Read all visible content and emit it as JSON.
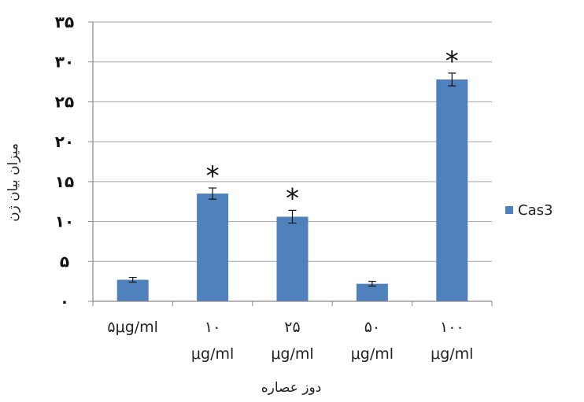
{
  "chart_data": {
    "type": "bar",
    "categories": [
      "۵μg/ml",
      "۱۰ μg/ml",
      "۲۵ μg/ml",
      "۵۰ μg/ml",
      "۱۰۰ μg/ml"
    ],
    "category_lines": [
      [
        "۵μg/ml"
      ],
      [
        "۱۰",
        "μg/ml"
      ],
      [
        "۲۵",
        "μg/ml"
      ],
      [
        "۵۰",
        "μg/ml"
      ],
      [
        "۱۰۰",
        "μg/ml"
      ]
    ],
    "series": [
      {
        "name": "Cas3",
        "values": [
          2.7,
          13.5,
          10.6,
          2.2,
          27.8
        ],
        "errors": [
          0.3,
          0.7,
          0.8,
          0.3,
          0.8
        ],
        "color": "#4F81BD"
      }
    ],
    "significance": [
      "",
      "*",
      "*",
      "",
      "*"
    ],
    "ylim": [
      0,
      35
    ],
    "yticks": [
      0,
      5,
      10,
      15,
      20,
      25,
      30,
      35
    ],
    "ytick_labels": [
      "۰",
      "۵",
      "۱۰",
      "۱۵",
      "۲۰",
      "۲۵",
      "۳۰",
      "۳۵"
    ],
    "xlabel": "دوز عصاره",
    "ylabel": "میزان بیان ژن",
    "grid": true,
    "legend_position": "right"
  }
}
